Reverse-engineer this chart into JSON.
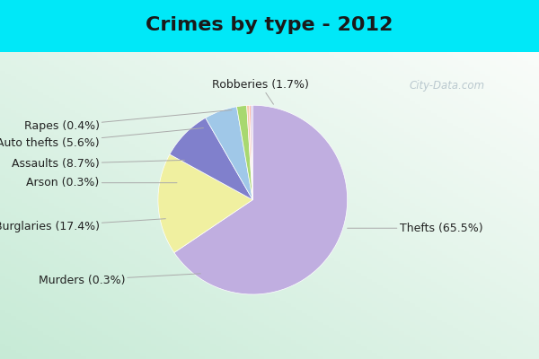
{
  "title": "Crimes by type - 2012",
  "labels": [
    "Thefts",
    "Burglaries",
    "Assaults",
    "Auto thefts",
    "Robberies",
    "Rapes",
    "Arson",
    "Murders"
  ],
  "display_labels": [
    "Thefts (65.5%)",
    "Burglaries (17.4%)",
    "Assaults (8.7%)",
    "Auto thefts (5.6%)",
    "Robberies (1.7%)",
    "Rapes (0.4%)",
    "Arson (0.3%)",
    "Murders (0.3%)"
  ],
  "values": [
    65.5,
    17.4,
    8.7,
    5.6,
    1.7,
    0.4,
    0.3,
    0.3
  ],
  "colors": [
    "#c0aee0",
    "#f0f0a0",
    "#8080cc",
    "#a0c8e8",
    "#a8d870",
    "#f8c8a8",
    "#f8b0a0",
    "#d0c0e8"
  ],
  "background_top": "#00e8f8",
  "background_main_tl": "#c8e8d8",
  "background_main_br": "#e8f0f0",
  "title_fontsize": 16,
  "label_fontsize": 9,
  "startangle": 90,
  "watermark": "City-Data.com"
}
